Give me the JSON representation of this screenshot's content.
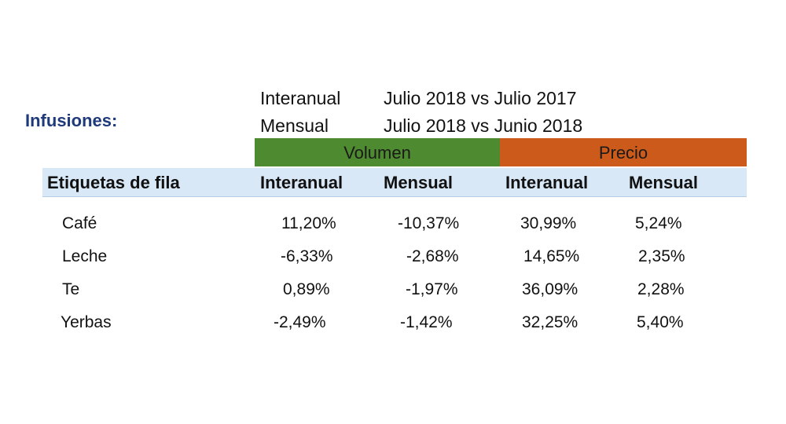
{
  "title": "Infusiones:",
  "periods": [
    {
      "label": "Interanual",
      "value": "Julio 2018 vs Julio 2017"
    },
    {
      "label": "Mensual",
      "value": "Julio 2018 vs Junio 2018"
    }
  ],
  "groups": {
    "volumen": "Volumen",
    "precio": "Precio"
  },
  "colors": {
    "volumen": "#4e8a2f",
    "precio": "#cc5a1a",
    "header_band": "#d9e8f6",
    "title": "#1f3a7a"
  },
  "table": {
    "row_header": "Etiquetas de fila",
    "columns": [
      "Interanual",
      "Mensual",
      "Interanual",
      "Mensual"
    ],
    "rows": [
      {
        "label": "Café",
        "values": [
          "11,20%",
          "-10,37%",
          "30,99%",
          "5,24%"
        ]
      },
      {
        "label": "Leche",
        "values": [
          "-6,33%",
          "-2,68%",
          "14,65%",
          "2,35%"
        ]
      },
      {
        "label": "Te",
        "values": [
          "0,89%",
          "-1,97%",
          "36,09%",
          "2,28%"
        ]
      },
      {
        "label": "Yerbas",
        "values": [
          "-2,49%",
          "-1,42%",
          "32,25%",
          "5,40%"
        ]
      }
    ]
  }
}
